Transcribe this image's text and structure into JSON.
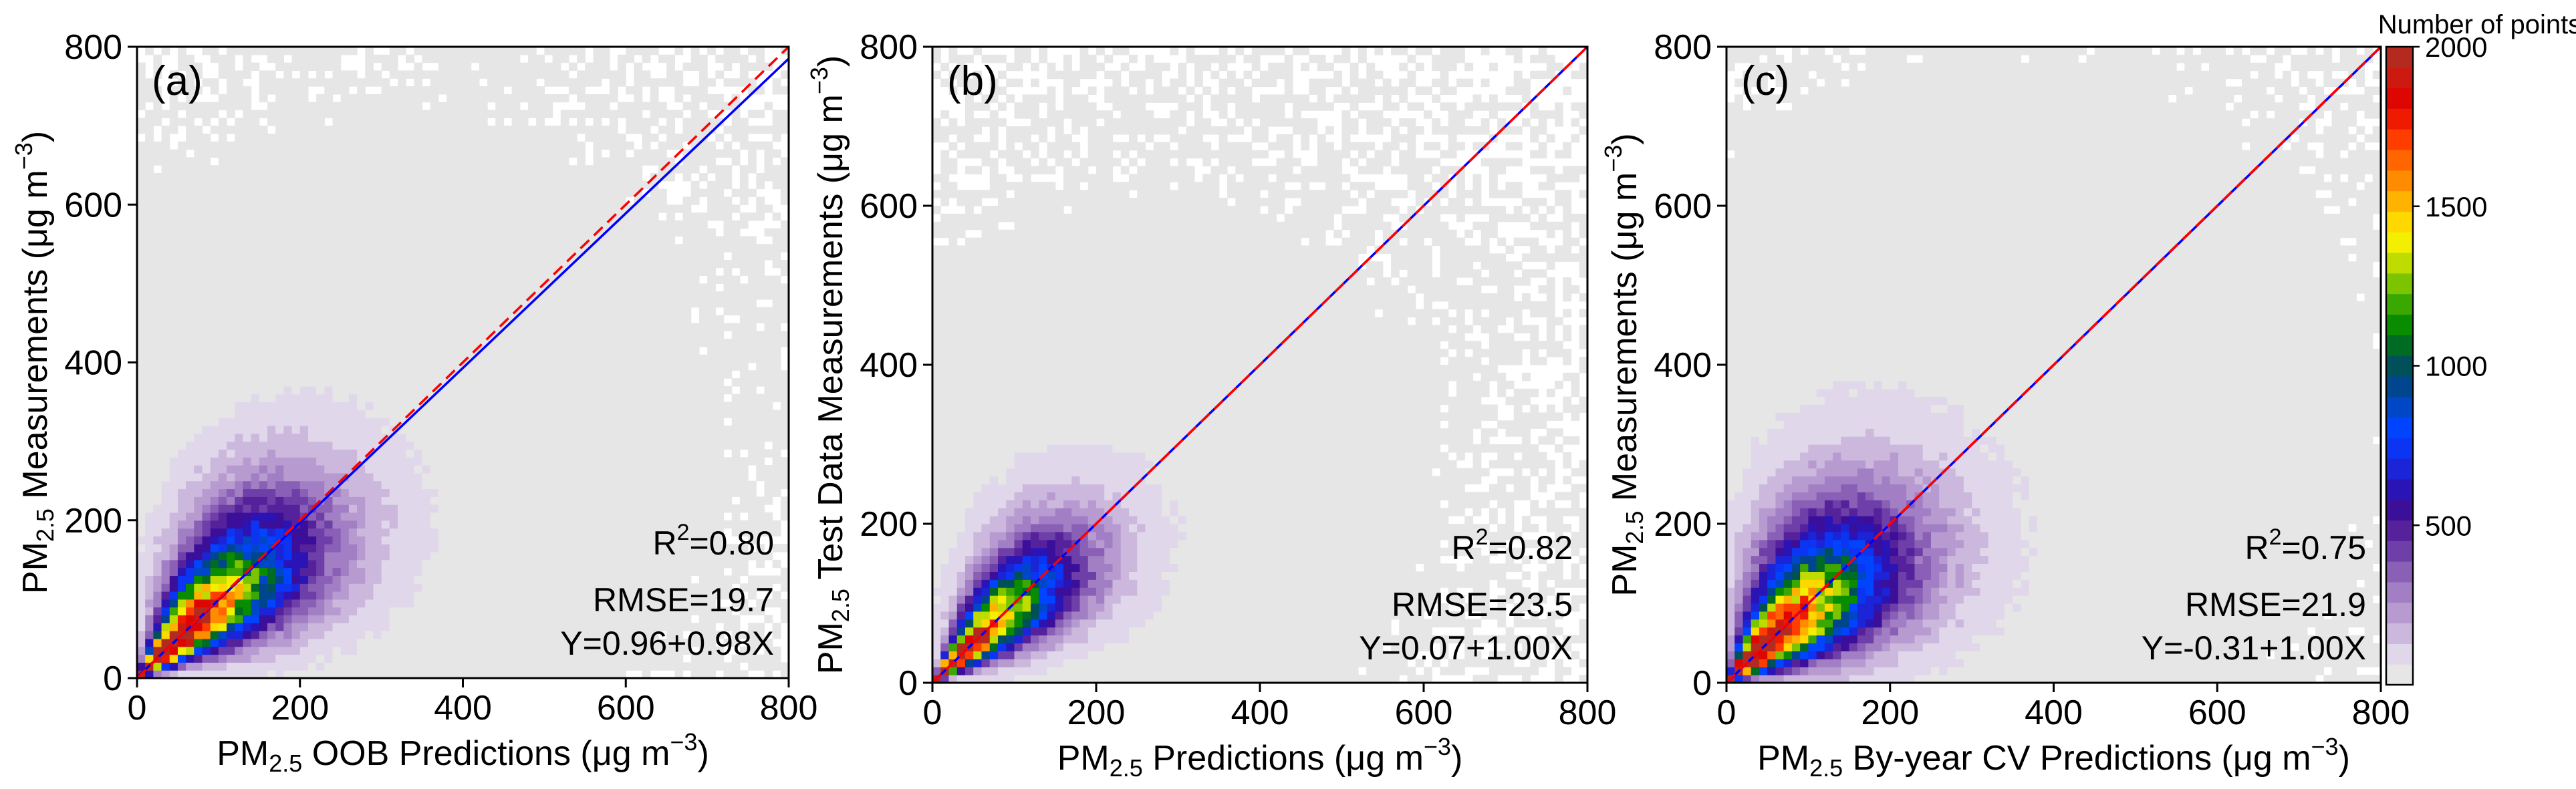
{
  "chart_data": [
    {
      "type": "heatmap",
      "panel_label": "(a)",
      "xlabel": "PM2.5 OOB Predictions (μg m−3)",
      "xlabel_main": "PM",
      "xlabel_sub": "2.5",
      "xlabel_mid": " OOB Predictions (",
      "ylabel": "PM2.5 Measurements (μg m−3)",
      "ylabel_main": "PM",
      "ylabel_sub": "2.5",
      "ylabel_mid": " Measurements (",
      "unit_mu": "μg m",
      "unit_sup": "−3",
      "unit_close": ")",
      "xlim": [
        0,
        800
      ],
      "ylim": [
        0,
        800
      ],
      "xticks": [
        "0",
        "200",
        "400",
        "600",
        "800"
      ],
      "yticks": [
        "0",
        "200",
        "400",
        "600",
        "800"
      ],
      "r2_prefix": "R",
      "r2_sup": "2",
      "r2_value": "=0.80",
      "rmse": "RMSE=19.7",
      "equation": "Y=0.96+0.98X",
      "fit": {
        "intercept": 0.96,
        "slope": 0.98
      },
      "one_to_one": {
        "intercept": 0,
        "slope": 1
      },
      "core_width": 0.26,
      "core_extent": 180,
      "spread": 1.0
    },
    {
      "type": "heatmap",
      "panel_label": "(b)",
      "xlabel": "PM2.5 Predictions (μg m−3)",
      "xlabel_main": "PM",
      "xlabel_sub": "2.5",
      "xlabel_mid": " Predictions (",
      "ylabel": "PM2.5 Test Data Measurements (μg m−3)",
      "ylabel_main": "PM",
      "ylabel_sub": "2.5",
      "ylabel_mid": " Test Data Measurements (",
      "unit_mu": "μg m",
      "unit_sup": "−3",
      "unit_close": ")",
      "xlim": [
        0,
        800
      ],
      "ylim": [
        0,
        800
      ],
      "xticks": [
        "0",
        "200",
        "400",
        "600",
        "800"
      ],
      "yticks": [
        "0",
        "200",
        "400",
        "600",
        "800"
      ],
      "r2_prefix": "R",
      "r2_sup": "2",
      "r2_value": "=0.82",
      "rmse": "RMSE=23.5",
      "equation": "Y=0.07+1.00X",
      "fit": {
        "intercept": 0.07,
        "slope": 1.0
      },
      "one_to_one": {
        "intercept": 0,
        "slope": 1
      },
      "core_width": 0.22,
      "core_extent": 150,
      "spread": 0.85
    },
    {
      "type": "heatmap",
      "panel_label": "(c)",
      "xlabel": "PM2.5 By-year CV Predictions (μg m−3)",
      "xlabel_main": "PM",
      "xlabel_sub": "2.5",
      "xlabel_mid": " By-year CV Predictions (",
      "ylabel": "PM2.5 Measurements (μg m−3)",
      "ylabel_main": "PM",
      "ylabel_sub": "2.5",
      "ylabel_mid": " Measurements (",
      "unit_mu": "μg m",
      "unit_sup": "−3",
      "unit_close": ")",
      "xlim": [
        0,
        800
      ],
      "ylim": [
        0,
        800
      ],
      "xticks": [
        "0",
        "200",
        "400",
        "600",
        "800"
      ],
      "yticks": [
        "0",
        "200",
        "400",
        "600",
        "800"
      ],
      "r2_prefix": "R",
      "r2_sup": "2",
      "r2_value": "=0.75",
      "rmse": "RMSE=21.9",
      "equation": "Y=-0.31+1.00X",
      "fit": {
        "intercept": -0.31,
        "slope": 1.0
      },
      "one_to_one": {
        "intercept": 0,
        "slope": 1
      },
      "core_width": 0.3,
      "core_extent": 175,
      "spread": 1.1
    }
  ],
  "colorbar": {
    "title": "Number of points",
    "range": [
      0,
      2000
    ],
    "ticks": [
      "500",
      "1000",
      "1500",
      "2000"
    ],
    "tick_values": [
      500,
      1000,
      1500,
      2000
    ],
    "colors": [
      "#e6e6e6",
      "#e0d8ea",
      "#cbb8dc",
      "#b79bd0",
      "#a27fc4",
      "#8a5fb6",
      "#6e3fa8",
      "#56229c",
      "#3b0f9a",
      "#2a14b6",
      "#1b24d6",
      "#0b35f2",
      "#0044ff",
      "#0047c7",
      "#00468e",
      "#00505a",
      "#006b22",
      "#0a8c00",
      "#3aa800",
      "#7cc300",
      "#bfdc00",
      "#f2ef00",
      "#ffd800",
      "#ffb300",
      "#ff8c00",
      "#ff6500",
      "#ff3d00",
      "#f01a00",
      "#de0600",
      "#cc1a10",
      "#b52a1f"
    ]
  },
  "line_colors": {
    "fit": "#0000ff",
    "one_to_one": "#ff0000"
  }
}
